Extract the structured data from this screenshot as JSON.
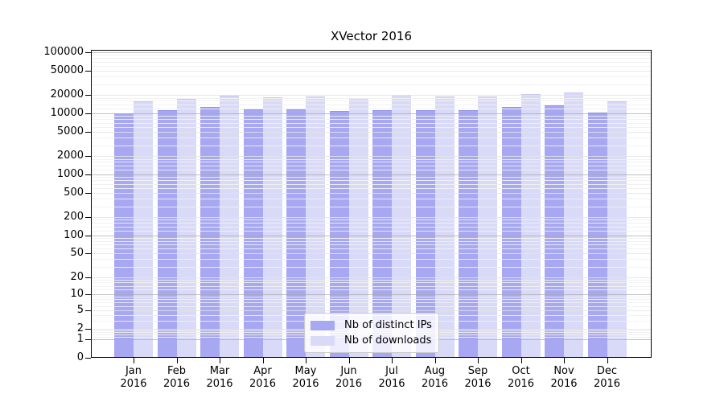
{
  "title": "XVector 2016",
  "chart_data": {
    "type": "bar",
    "title": "XVector 2016",
    "scale": "log10(1+x)",
    "grid": true,
    "legend_position": "lower center",
    "months": [
      "Jan",
      "Feb",
      "Mar",
      "Apr",
      "May",
      "Jun",
      "Jul",
      "Aug",
      "Sep",
      "Oct",
      "Nov",
      "Dec"
    ],
    "year": "2016",
    "series": [
      {
        "name": "Nb of distinct IPs",
        "color": "#a7a7f2",
        "edge_color": "#9393e6",
        "values": [
          10000,
          11200,
          12600,
          11500,
          11600,
          11000,
          11200,
          11350,
          11350,
          12600,
          13400,
          10400
        ]
      },
      {
        "name": "Nb of downloads",
        "color": "#d9d9f8",
        "edge_color": "#c7c7f0",
        "values": [
          15600,
          17200,
          19500,
          18200,
          19100,
          17900,
          19900,
          18900,
          19100,
          20500,
          22000,
          16000
        ]
      }
    ],
    "y_ticks": [
      100000,
      50000,
      20000,
      10000,
      5000,
      2000,
      1000,
      500,
      200,
      100,
      50,
      20,
      10,
      5,
      2,
      1,
      0
    ],
    "ylim": [
      0,
      110000
    ]
  },
  "colors": {
    "grid_major": "#ababab",
    "grid_labeled": "#e4e4e4",
    "grid_minor": "#f1f1f1",
    "axis": "#000000",
    "legend_border": "#cccccc",
    "background": "#ffffff"
  }
}
